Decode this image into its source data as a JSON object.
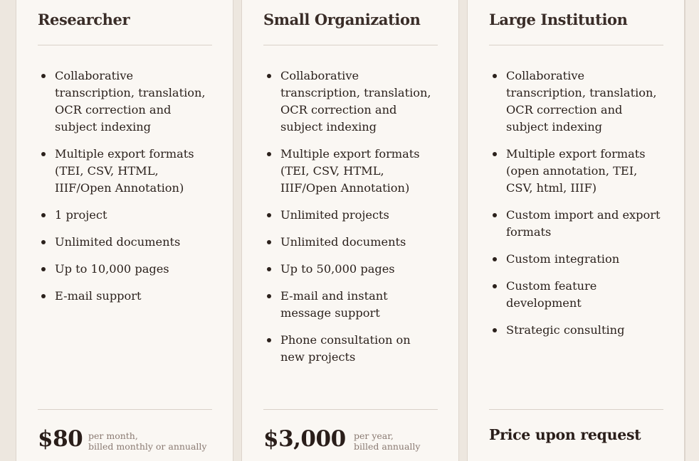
{
  "plans": [
    {
      "title": "Researcher",
      "features": [
        "Collaborative transcription, translation, OCR correction and subject indexing",
        "Multiple export formats (TEI, CSV, HTML, IIIF/Open Annotation)",
        "1 project",
        "Unlimited documents",
        "Up to 10,000 pages",
        "E-mail support"
      ],
      "price": "$80",
      "price_note_line1": "per month,",
      "price_note_line2": "billed monthly or annually"
    },
    {
      "title": "Small Organization",
      "features": [
        "Collaborative transcription, translation, OCR correction and subject indexing",
        "Multiple export formats (TEI, CSV, HTML, IIIF/Open Annotation)",
        "Unlimited projects",
        "Unlimited documents",
        "Up to 50,000 pages",
        "E-mail and instant message support",
        "Phone consultation on new projects"
      ],
      "price": "$3,000",
      "price_note_line1": "per year,",
      "price_note_line2": "billed annually"
    },
    {
      "title": "Large Institution",
      "features": [
        "Collaborative transcription, translation, OCR correction and subject indexing",
        "Multiple export formats (open annotation, TEI, CSV, html, IIIF)",
        "Custom import and export formats",
        "Custom integration",
        "Custom feature development",
        "Strategic consulting"
      ],
      "price_request": "Price upon request"
    }
  ]
}
